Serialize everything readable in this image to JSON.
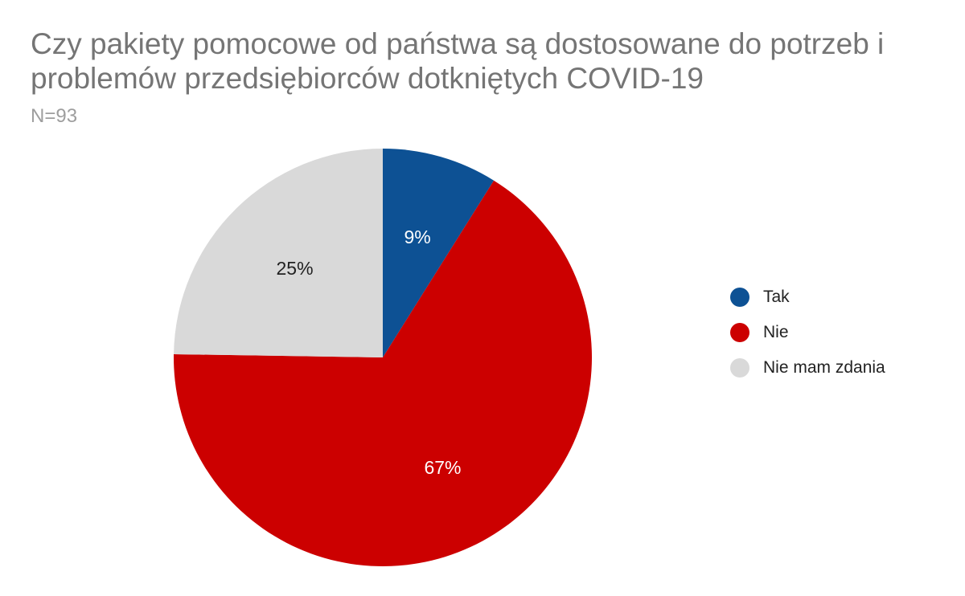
{
  "chart_data": {
    "type": "pie",
    "title": "Czy pakiety pomocowe od państwa są dostosowane do potrzeb i problemów przedsiębiorców dotkniętych COVID-19",
    "subtitle": "N=93",
    "legend_position": "right",
    "start_angle_deg": 0,
    "direction": "clockwise",
    "slices": [
      {
        "name": "Tak",
        "value": 9,
        "label": "9%",
        "color": "#0d5194",
        "label_color": "#ffffff"
      },
      {
        "name": "Nie",
        "value": 67,
        "label": "67%",
        "color": "#cc0000",
        "label_color": "#ffffff"
      },
      {
        "name": "Nie mam zdania",
        "value": 25,
        "label": "25%",
        "color": "#d9d9d9",
        "label_color": "#222222"
      }
    ]
  }
}
